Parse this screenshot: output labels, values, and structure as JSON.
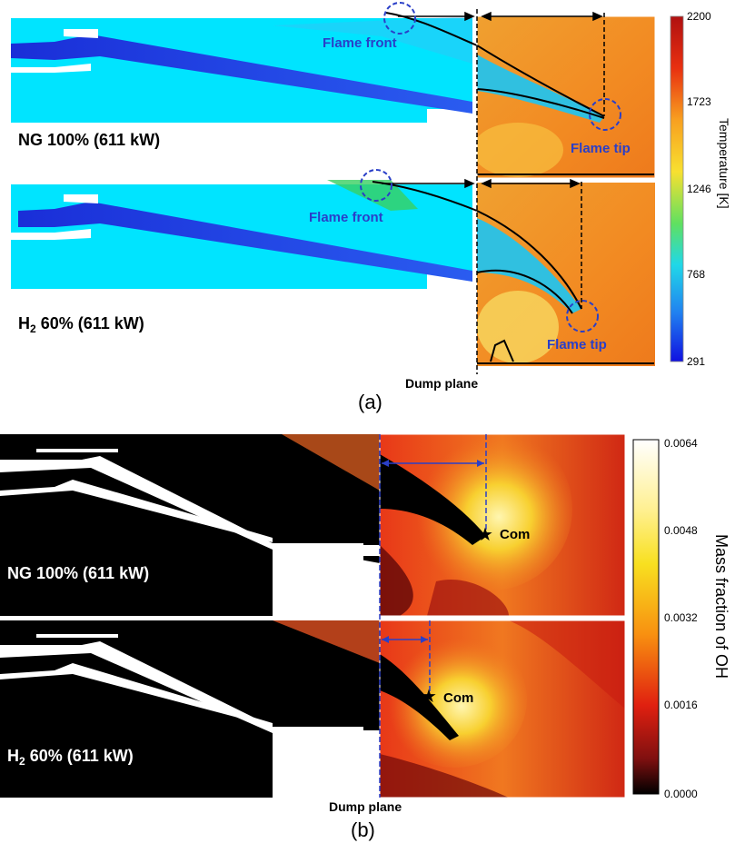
{
  "panel_a": {
    "caption": "(a)",
    "dump_plane_label": "Dump plane",
    "case1": {
      "label_prefix": "NG 100% (611 kW)",
      "flame_front": "Flame front",
      "flame_tip": "Flame tip"
    },
    "case2": {
      "label_main": "H",
      "label_sub": "2",
      "label_rest": " 60% (611 kW)",
      "flame_front": "Flame front",
      "flame_tip": "Flame tip"
    },
    "colorbar": {
      "title": "Temperature [K]",
      "ticks": [
        "2200",
        "1723",
        "1246",
        "768",
        "291"
      ]
    }
  },
  "panel_b": {
    "caption": "(b)",
    "dump_plane_label": "Dump plane",
    "case1": {
      "label": "NG 100% (611 kW)",
      "com_label": "Com"
    },
    "case2": {
      "label_main": "H",
      "label_sub": "2",
      "label_rest": " 60% (611 kW)",
      "com_label": "Com"
    },
    "colorbar": {
      "title": "Mass fraction of OH",
      "ticks": [
        "0.0064",
        "0.0048",
        "0.0032",
        "0.0016",
        "0.0000"
      ]
    }
  },
  "colors": {
    "annotation_blue": "#2a3fc8",
    "cold": "#00e0ff",
    "hot": "#f08a20"
  }
}
